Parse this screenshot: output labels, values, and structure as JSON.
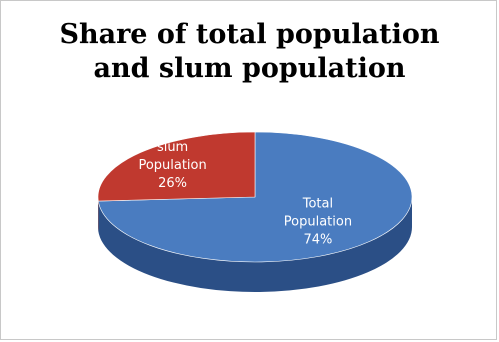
{
  "chart_data": {
    "type": "pie",
    "title_lines": [
      "Share of total population",
      "and slum population"
    ],
    "slices": [
      {
        "name_lines": [
          "Total",
          "Population"
        ],
        "value": 74,
        "label": "74%",
        "color": "#4a7cc0",
        "dark": "#2b4f86"
      },
      {
        "name_lines": [
          "slum",
          "Population"
        ],
        "value": 26,
        "label": "26%",
        "color": "#c0392f",
        "dark": "#7d1f19"
      }
    ],
    "legend": "none",
    "style": "3d-pie"
  }
}
